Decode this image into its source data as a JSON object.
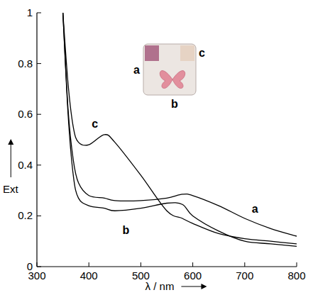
{
  "chart_data": {
    "type": "line",
    "x_label": "λ / nm",
    "y_label": "Ext",
    "x": [
      350,
      360,
      370,
      380,
      400,
      430,
      450,
      500,
      550,
      580,
      600,
      650,
      700,
      750,
      800
    ],
    "series": [
      {
        "name": "a",
        "color": "#000000",
        "values": [
          1.0,
          0.62,
          0.42,
          0.33,
          0.28,
          0.27,
          0.26,
          0.26,
          0.27,
          0.285,
          0.28,
          0.24,
          0.19,
          0.15,
          0.12
        ]
      },
      {
        "name": "b",
        "color": "#000000",
        "values": [
          1.0,
          0.6,
          0.36,
          0.27,
          0.24,
          0.23,
          0.22,
          0.23,
          0.25,
          0.245,
          0.2,
          0.14,
          0.1,
          0.09,
          0.08
        ]
      },
      {
        "name": "c",
        "color": "#000000",
        "values": [
          1.0,
          0.72,
          0.55,
          0.49,
          0.48,
          0.52,
          0.49,
          0.36,
          0.22,
          0.19,
          0.17,
          0.13,
          0.11,
          0.1,
          0.09
        ]
      }
    ],
    "xlim": [
      300,
      800
    ],
    "xticks": [
      300,
      400,
      500,
      600,
      700,
      800
    ],
    "ylim": [
      0,
      1
    ],
    "yticks": [
      0,
      0.2,
      0.4,
      0.6,
      0.8,
      1
    ],
    "inset_labels": [
      "a",
      "b",
      "c"
    ]
  }
}
